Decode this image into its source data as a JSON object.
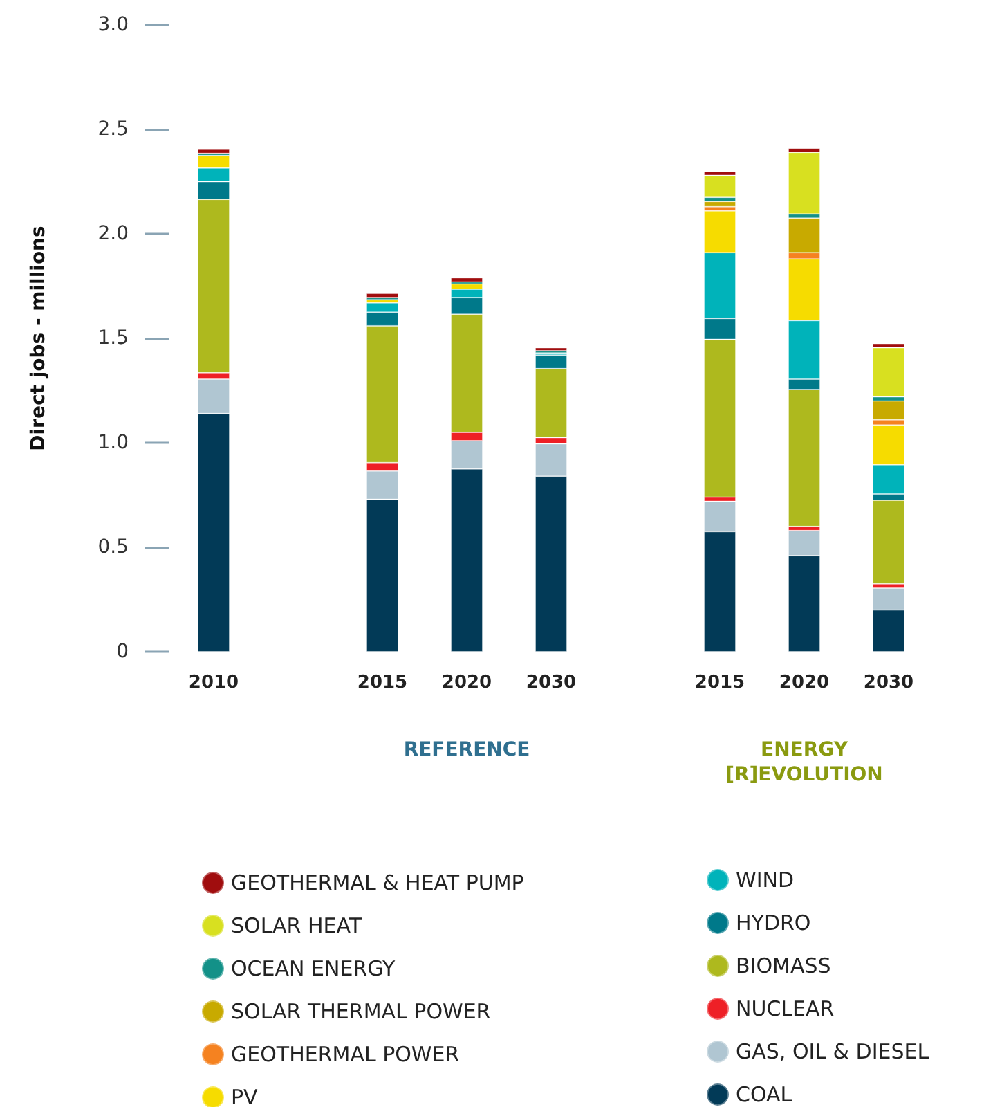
{
  "chart_data": {
    "type": "bar",
    "stacked": true,
    "ylabel": "Direct jobs - millions",
    "categories": [
      "2010",
      null,
      "2015",
      "2020",
      "2030",
      null,
      "2015",
      "2020",
      "2030"
    ],
    "series": [
      {
        "name": "COAL",
        "color": "#023a57",
        "values": [
          1.14,
          null,
          0.73,
          0.875,
          0.84,
          null,
          0.575,
          0.46,
          0.2
        ]
      },
      {
        "name": "GAS, OIL & DIESEL",
        "color": "#b0c6d2",
        "values": [
          0.165,
          null,
          0.135,
          0.135,
          0.155,
          null,
          0.145,
          0.12,
          0.105
        ]
      },
      {
        "name": "NUCLEAR",
        "color": "#ee2026",
        "values": [
          0.03,
          null,
          0.04,
          0.04,
          0.03,
          null,
          0.02,
          0.02,
          0.02
        ]
      },
      {
        "name": "BIOMASS",
        "color": "#aeb91e",
        "values": [
          0.83,
          null,
          0.655,
          0.565,
          0.33,
          null,
          0.755,
          0.655,
          0.4
        ]
      },
      {
        "name": "HYDRO",
        "color": "#00798a",
        "values": [
          0.085,
          null,
          0.065,
          0.08,
          0.065,
          null,
          0.1,
          0.05,
          0.03
        ]
      },
      {
        "name": "WIND",
        "color": "#00b3ba",
        "values": [
          0.065,
          null,
          0.045,
          0.04,
          0.01,
          null,
          0.315,
          0.28,
          0.14
        ]
      },
      {
        "name": "PV",
        "color": "#f6dc00",
        "values": [
          0.06,
          null,
          0.015,
          0.025,
          null,
          null,
          0.2,
          0.295,
          0.19
        ]
      },
      {
        "name": "GEOTHERMAL POWER",
        "color": "#f58220",
        "values": [
          null,
          null,
          null,
          null,
          null,
          null,
          0.02,
          0.03,
          0.025
        ]
      },
      {
        "name": "SOLAR THERMAL POWER",
        "color": "#c8aa00",
        "values": [
          null,
          null,
          null,
          null,
          null,
          null,
          0.025,
          0.165,
          0.09
        ]
      },
      {
        "name": "OCEAN ENERGY",
        "color": "#139188",
        "values": [
          0.01,
          null,
          0.01,
          0.01,
          0.01,
          null,
          0.02,
          0.02,
          0.02
        ]
      },
      {
        "name": "SOLAR HEAT",
        "color": "#d8e020",
        "values": [
          null,
          null,
          null,
          null,
          null,
          null,
          0.105,
          0.295,
          0.235
        ]
      },
      {
        "name": "GEOTHERMAL & HEAT PUMP",
        "color": "#a00d0e",
        "values": [
          0.02,
          null,
          0.02,
          0.02,
          0.015,
          null,
          0.02,
          0.02,
          0.02
        ]
      }
    ],
    "ylim": [
      0,
      3
    ],
    "yticks": [
      0,
      0.5,
      {
        "value": 1,
        "label": "1.0"
      },
      1.5,
      {
        "value": 2,
        "label": "2.0"
      },
      2.5,
      {
        "value": 3,
        "label": "3.0"
      }
    ],
    "annotations": [
      "REFERENCE",
      "ENERGY [R]EVOLUTION"
    ],
    "grid": false,
    "legend": "bottom"
  }
}
